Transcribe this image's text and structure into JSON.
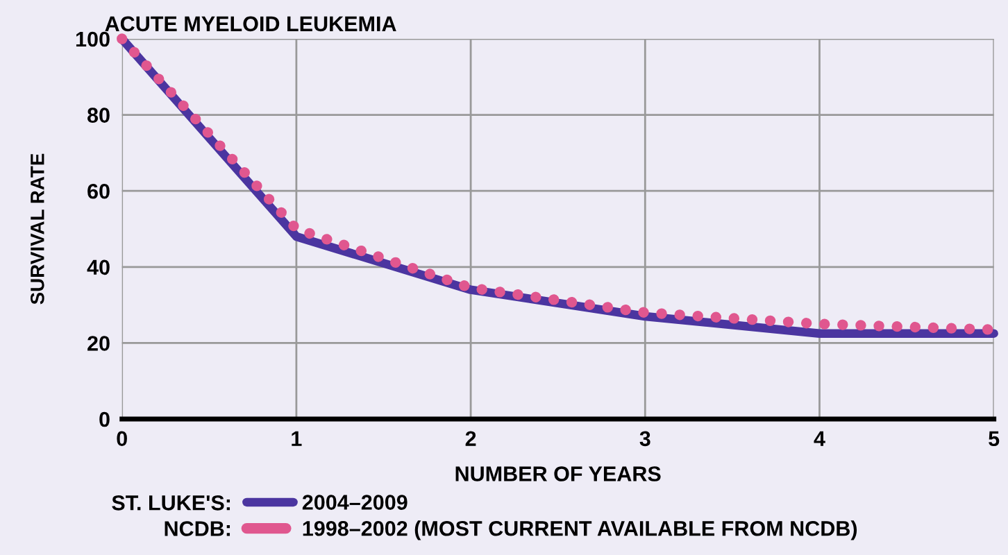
{
  "chart_data": {
    "type": "line",
    "title": "ACUTE MYELOID LEUKEMIA",
    "xlabel": "NUMBER OF YEARS",
    "ylabel": "SURVIVAL RATE",
    "x": [
      0,
      1,
      2,
      3,
      4,
      5
    ],
    "series": [
      {
        "name": "2004–2009",
        "color": "#4b35a0",
        "line_style": "solid",
        "values": [
          100,
          48,
          34,
          27,
          22.5,
          22.5
        ]
      },
      {
        "name": "1998–2002 (MOST CURRENT AVAILABLE FROM NCDB)",
        "color": "#e0578f",
        "line_style": "dotted",
        "values": [
          100,
          50,
          34.5,
          28,
          25,
          23.5
        ]
      }
    ],
    "annotations": [
      "ST. LUKE'S:",
      "NCDB:"
    ],
    "xlim": [
      0,
      5
    ],
    "xticks": [
      0,
      1,
      2,
      3,
      4,
      5
    ],
    "ylim": [
      0,
      100
    ],
    "yticks": [
      0,
      20,
      40,
      60,
      80,
      100
    ],
    "grid": true,
    "legend": "bottom left",
    "marker": "none"
  }
}
